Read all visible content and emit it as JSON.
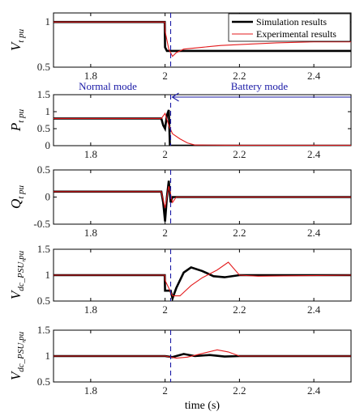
{
  "colors": {
    "simulation": "#000000",
    "experimental": "#e31a1c",
    "annotation": "#1a1aa6",
    "axes": "#000000"
  },
  "chart_data": [
    {
      "type": "line",
      "ylabel_main": "V",
      "ylabel_sub": "t pu",
      "xlim": [
        1.7,
        2.5
      ],
      "ylim": [
        0.5,
        1.1
      ],
      "xticks": [
        1.8,
        2.0,
        2.2,
        2.4
      ],
      "xtick_labels": [
        "1.8",
        "2",
        "2.2",
        "2.4"
      ],
      "yticks": [
        0.5,
        1.0
      ],
      "ytick_labels": [
        "0.5",
        "1"
      ],
      "legend": {
        "placement": "top-right",
        "entries": [
          "Simulation results",
          "Experimental results"
        ]
      },
      "series": [
        {
          "name": "Simulation results",
          "x": [
            1.7,
            1.999,
            2.0,
            2.005,
            2.5
          ],
          "y": [
            1.0,
            1.0,
            0.72,
            0.68,
            0.68
          ]
        },
        {
          "name": "Experimental results",
          "x": [
            1.7,
            1.999,
            2.0,
            2.01,
            2.02,
            2.03,
            2.05,
            2.1,
            2.15,
            2.2,
            2.3,
            2.4,
            2.5
          ],
          "y": [
            1.0,
            1.0,
            0.9,
            0.7,
            0.62,
            0.66,
            0.7,
            0.72,
            0.74,
            0.75,
            0.77,
            0.78,
            0.78
          ]
        }
      ]
    },
    {
      "type": "line",
      "ylabel_main": "P",
      "ylabel_sub": "t pu",
      "xlim": [
        1.7,
        2.5
      ],
      "ylim": [
        0,
        1.5
      ],
      "xticks": [
        1.8,
        2.0,
        2.2,
        2.4
      ],
      "xtick_labels": [
        "1.8",
        "2",
        "2.2",
        "2.4"
      ],
      "yticks": [
        0,
        0.5,
        1.0,
        1.5
      ],
      "ytick_labels": [
        "0",
        "0.5",
        "1",
        "1.5"
      ],
      "series": [
        {
          "name": "Simulation results",
          "x": [
            1.7,
            1.99,
            1.995,
            2.0,
            2.005,
            2.01,
            2.013,
            2.5
          ],
          "y": [
            0.8,
            0.8,
            0.6,
            0.5,
            0.9,
            1.05,
            0.0,
            0.0
          ]
        },
        {
          "name": "Experimental results",
          "x": [
            1.7,
            1.99,
            2.0,
            2.01,
            2.02,
            2.04,
            2.06,
            2.08,
            2.1,
            2.2,
            2.5
          ],
          "y": [
            0.8,
            0.8,
            0.95,
            0.6,
            0.35,
            0.2,
            0.08,
            0.02,
            0.02,
            0.01,
            0.01
          ]
        }
      ]
    },
    {
      "type": "line",
      "ylabel_main": "Q",
      "ylabel_sub": "t pu",
      "xlim": [
        1.7,
        2.5
      ],
      "ylim": [
        -0.5,
        0.5
      ],
      "xticks": [
        1.8,
        2.0,
        2.2,
        2.4
      ],
      "xtick_labels": [
        "1.8",
        "2",
        "2.2",
        "2.4"
      ],
      "yticks": [
        -0.5,
        0,
        0.5
      ],
      "ytick_labels": [
        "-0.5",
        "0",
        "0.5"
      ],
      "series": [
        {
          "name": "Simulation results",
          "x": [
            1.7,
            1.99,
            1.995,
            2.0,
            2.005,
            2.01,
            2.015,
            2.02,
            2.5
          ],
          "y": [
            0.1,
            0.1,
            -0.1,
            -0.45,
            0.0,
            0.3,
            -0.1,
            0.0,
            0.0
          ]
        },
        {
          "name": "Experimental results",
          "x": [
            1.7,
            1.99,
            2.0,
            2.01,
            2.02,
            2.03,
            2.5
          ],
          "y": [
            0.1,
            0.1,
            -0.2,
            0.2,
            -0.1,
            0.0,
            0.0
          ]
        }
      ]
    },
    {
      "type": "line",
      "ylabel_main": "V",
      "ylabel_sub": "dc_PSU,pu",
      "xlim": [
        1.7,
        2.5
      ],
      "ylim": [
        0.5,
        1.5
      ],
      "xticks": [
        1.8,
        2.0,
        2.2,
        2.4
      ],
      "xtick_labels": [
        "1.8",
        "2",
        "2.2",
        "2.4"
      ],
      "yticks": [
        0.5,
        1.0,
        1.5
      ],
      "ytick_labels": [
        "0.5",
        "1",
        "1.5"
      ],
      "series": [
        {
          "name": "Simulation results",
          "x": [
            1.7,
            1.999,
            2.0,
            2.015,
            2.02,
            2.03,
            2.05,
            2.07,
            2.1,
            2.13,
            2.16,
            2.2,
            2.5
          ],
          "y": [
            1.0,
            1.0,
            0.7,
            0.7,
            0.55,
            0.75,
            1.05,
            1.15,
            1.08,
            0.98,
            0.96,
            1.0,
            1.0
          ]
        },
        {
          "name": "Experimental results",
          "x": [
            1.7,
            1.999,
            2.0,
            2.02,
            2.04,
            2.07,
            2.1,
            2.14,
            2.17,
            2.2,
            2.25,
            2.5
          ],
          "y": [
            1.0,
            1.0,
            0.9,
            0.6,
            0.6,
            0.8,
            0.95,
            1.1,
            1.25,
            1.0,
            0.98,
            1.0
          ]
        }
      ]
    },
    {
      "type": "line",
      "ylabel_main": "V",
      "ylabel_sub": "dc_PSU,pu",
      "xlabel": "time (s)",
      "xlim": [
        1.7,
        2.5
      ],
      "ylim": [
        0.5,
        1.5
      ],
      "xticks": [
        1.8,
        2.0,
        2.2,
        2.4
      ],
      "xtick_labels": [
        "1.8",
        "2",
        "2.2",
        "2.4"
      ],
      "yticks": [
        0.5,
        1.0,
        1.5
      ],
      "ytick_labels": [
        "0.5",
        "1",
        "1.5"
      ],
      "series": [
        {
          "name": "Simulation results",
          "x": [
            1.7,
            2.0,
            2.02,
            2.05,
            2.08,
            2.12,
            2.16,
            2.2,
            2.5
          ],
          "y": [
            1.0,
            1.0,
            0.98,
            1.04,
            1.0,
            1.02,
            0.99,
            1.0,
            1.0
          ]
        },
        {
          "name": "Experimental results",
          "x": [
            1.7,
            2.0,
            2.03,
            2.06,
            2.1,
            2.14,
            2.17,
            2.2,
            2.25,
            2.5
          ],
          "y": [
            1.0,
            1.0,
            0.96,
            0.98,
            1.05,
            1.12,
            1.08,
            1.0,
            1.0,
            1.0
          ]
        }
      ]
    }
  ],
  "annotations": {
    "normal_mode": "Normal mode",
    "battery_mode": "Battery mode"
  }
}
